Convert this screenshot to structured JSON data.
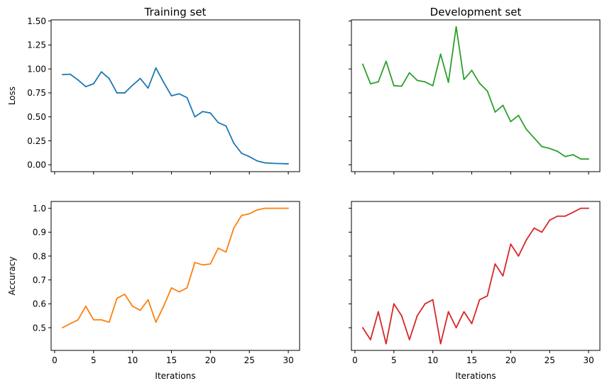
{
  "figure": {
    "col_titles": [
      "Training set",
      "Development set"
    ],
    "row_labels": [
      "Loss",
      "Accuracy"
    ],
    "xlabel": "Iterations"
  },
  "chart_data": [
    {
      "type": "line",
      "title": "Training set",
      "xlabel": "",
      "ylabel": "Loss",
      "color": "#1f77b4",
      "xlim": [
        -0.45,
        31.45
      ],
      "ylim": [
        -0.072,
        1.512
      ],
      "xticks": [
        0,
        5,
        10,
        15,
        20,
        25,
        30
      ],
      "xtick_labels_visible": false,
      "yticks": [
        0.0,
        0.25,
        0.5,
        0.75,
        1.0,
        1.25,
        1.5
      ],
      "ytick_labels": [
        "0.00",
        "0.25",
        "0.50",
        "0.75",
        "1.00",
        "1.25",
        "1.50"
      ],
      "ytick_labels_visible": true,
      "x": [
        1,
        2,
        3,
        4,
        5,
        6,
        7,
        8,
        9,
        10,
        11,
        12,
        13,
        14,
        15,
        16,
        17,
        18,
        19,
        20,
        21,
        22,
        23,
        24,
        25,
        26,
        27,
        28,
        29,
        30
      ],
      "y": [
        0.94,
        0.945,
        0.885,
        0.815,
        0.845,
        0.97,
        0.9,
        0.75,
        0.75,
        0.83,
        0.9,
        0.8,
        1.01,
        0.86,
        0.72,
        0.74,
        0.7,
        0.5,
        0.555,
        0.54,
        0.44,
        0.405,
        0.225,
        0.12,
        0.085,
        0.04,
        0.02,
        0.015,
        0.012,
        0.01
      ]
    },
    {
      "type": "line",
      "title": "Development set",
      "xlabel": "",
      "ylabel": "",
      "color": "#2ca02c",
      "xlim": [
        -0.45,
        31.45
      ],
      "ylim": [
        -0.072,
        1.512
      ],
      "xticks": [
        0,
        5,
        10,
        15,
        20,
        25,
        30
      ],
      "xtick_labels_visible": false,
      "yticks": [
        0.0,
        0.25,
        0.5,
        0.75,
        1.0,
        1.25,
        1.5
      ],
      "ytick_labels_visible": false,
      "x": [
        1,
        2,
        3,
        4,
        5,
        6,
        7,
        8,
        9,
        10,
        11,
        12,
        13,
        14,
        15,
        16,
        17,
        18,
        19,
        20,
        21,
        22,
        23,
        24,
        25,
        26,
        27,
        28,
        29,
        30
      ],
      "y": [
        1.05,
        0.845,
        0.865,
        1.08,
        0.825,
        0.82,
        0.96,
        0.88,
        0.865,
        0.825,
        1.155,
        0.86,
        1.44,
        0.89,
        0.985,
        0.85,
        0.77,
        0.55,
        0.62,
        0.45,
        0.515,
        0.37,
        0.28,
        0.19,
        0.17,
        0.14,
        0.085,
        0.105,
        0.06,
        0.06
      ]
    },
    {
      "type": "line",
      "title": "",
      "xlabel": "Iterations",
      "ylabel": "Accuracy",
      "color": "#ff7f0e",
      "xlim": [
        -0.45,
        31.45
      ],
      "ylim": [
        0.405,
        1.0286
      ],
      "xticks": [
        0,
        5,
        10,
        15,
        20,
        25,
        30
      ],
      "xtick_labels": [
        "0",
        "5",
        "10",
        "15",
        "20",
        "25",
        "30"
      ],
      "xtick_labels_visible": true,
      "yticks": [
        0.5,
        0.6,
        0.7,
        0.8,
        0.9,
        1.0
      ],
      "ytick_labels": [
        "0.5",
        "0.6",
        "0.7",
        "0.8",
        "0.9",
        "1.0"
      ],
      "ytick_labels_visible": true,
      "x": [
        1,
        2,
        3,
        4,
        5,
        6,
        7,
        8,
        9,
        10,
        11,
        12,
        13,
        14,
        15,
        16,
        17,
        18,
        19,
        20,
        21,
        22,
        23,
        24,
        25,
        26,
        27,
        28,
        29,
        30
      ],
      "y": [
        0.5,
        0.517,
        0.533,
        0.59,
        0.533,
        0.533,
        0.523,
        0.623,
        0.64,
        0.59,
        0.573,
        0.617,
        0.523,
        0.59,
        0.667,
        0.65,
        0.667,
        0.773,
        0.763,
        0.767,
        0.833,
        0.817,
        0.917,
        0.97,
        0.977,
        0.993,
        1.0,
        1.0,
        1.0,
        1.0
      ]
    },
    {
      "type": "line",
      "title": "",
      "xlabel": "Iterations",
      "ylabel": "",
      "color": "#d62728",
      "xlim": [
        -0.45,
        31.45
      ],
      "ylim": [
        0.405,
        1.0286
      ],
      "xticks": [
        0,
        5,
        10,
        15,
        20,
        25,
        30
      ],
      "xtick_labels": [
        "0",
        "5",
        "10",
        "15",
        "20",
        "25",
        "30"
      ],
      "xtick_labels_visible": true,
      "yticks": [
        0.5,
        0.6,
        0.7,
        0.8,
        0.9,
        1.0
      ],
      "ytick_labels_visible": false,
      "x": [
        1,
        2,
        3,
        4,
        5,
        6,
        7,
        8,
        9,
        10,
        11,
        12,
        13,
        14,
        15,
        16,
        17,
        18,
        19,
        20,
        21,
        22,
        23,
        24,
        25,
        26,
        27,
        28,
        29,
        30
      ],
      "y": [
        0.5,
        0.45,
        0.567,
        0.433,
        0.6,
        0.55,
        0.45,
        0.55,
        0.6,
        0.617,
        0.433,
        0.567,
        0.5,
        0.567,
        0.517,
        0.617,
        0.633,
        0.767,
        0.717,
        0.85,
        0.8,
        0.867,
        0.917,
        0.9,
        0.95,
        0.967,
        0.967,
        0.983,
        1.0,
        1.0
      ]
    }
  ]
}
